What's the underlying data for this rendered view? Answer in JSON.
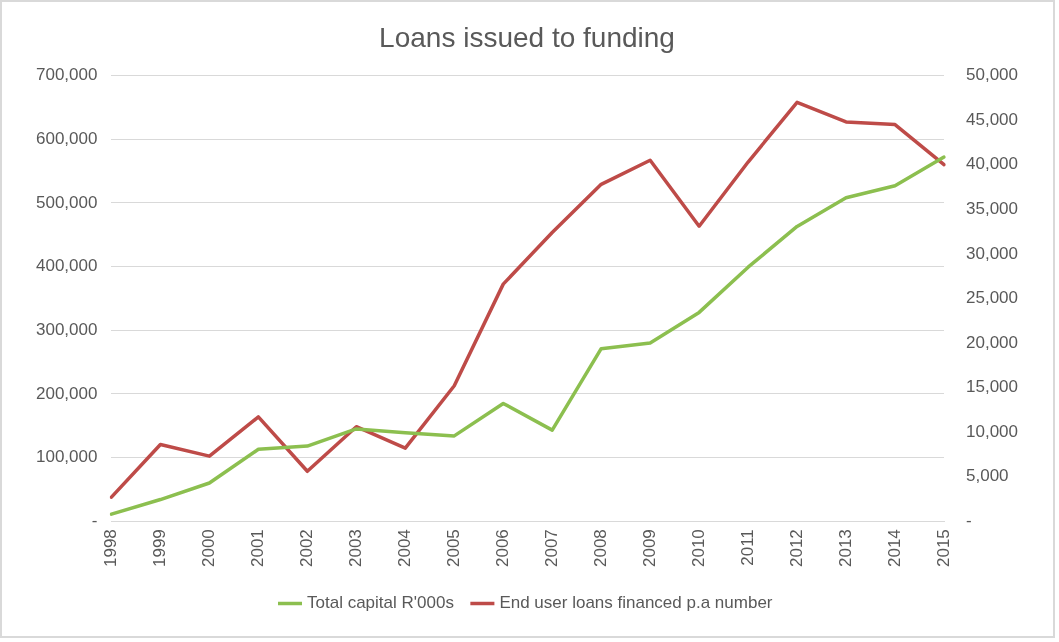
{
  "chart_data": {
    "type": "line",
    "title": "Loans issued to funding",
    "categories": [
      "1998",
      "1999",
      "2000",
      "2001",
      "2002",
      "2003",
      "2004",
      "2005",
      "2006",
      "2007",
      "2008",
      "2009",
      "2010",
      "2011",
      "2012",
      "2013",
      "2014",
      "2015"
    ],
    "series": [
      {
        "name": "Total capital R'000s",
        "color": "#8cbf4f",
        "values": [
          11000,
          34000,
          60000,
          113000,
          118000,
          145000,
          139000,
          134000,
          185000,
          143000,
          271000,
          280000,
          328000,
          399000,
          463000,
          508000,
          527000,
          572000
        ]
      },
      {
        "name": "End user loans financed p.a number",
        "color": "#be4b48",
        "axis": "y2",
        "values": [
          2700,
          8600,
          7300,
          11700,
          5600,
          10600,
          8200,
          15200,
          26600,
          32400,
          37800,
          40500,
          33100,
          40300,
          47000,
          44800,
          44500,
          40000
        ]
      }
    ],
    "ylim": [
      0,
      700000
    ],
    "yticks": [
      {
        "value": 0,
        "label": "-"
      },
      {
        "value": 100000,
        "label": "100,000"
      },
      {
        "value": 200000,
        "label": "200,000"
      },
      {
        "value": 300000,
        "label": "300,000"
      },
      {
        "value": 400000,
        "label": "400,000"
      },
      {
        "value": 500000,
        "label": "500,000"
      },
      {
        "value": 600000,
        "label": "600,000"
      },
      {
        "value": 700000,
        "label": "700,000"
      }
    ],
    "y2lim": [
      0,
      50000
    ],
    "y2ticks": [
      {
        "value": 0,
        "label": "-"
      },
      {
        "value": 5000,
        "label": "5,000"
      },
      {
        "value": 10000,
        "label": "10,000"
      },
      {
        "value": 15000,
        "label": "15,000"
      },
      {
        "value": 20000,
        "label": "20,000"
      },
      {
        "value": 25000,
        "label": "25,000"
      },
      {
        "value": 30000,
        "label": "30,000"
      },
      {
        "value": 35000,
        "label": "35,000"
      },
      {
        "value": 40000,
        "label": "40,000"
      },
      {
        "value": 45000,
        "label": "45,000"
      },
      {
        "value": 50000,
        "label": "50,000"
      }
    ],
    "grid": "y",
    "legend": "bottom",
    "marker": "none",
    "line_style": "solid"
  }
}
